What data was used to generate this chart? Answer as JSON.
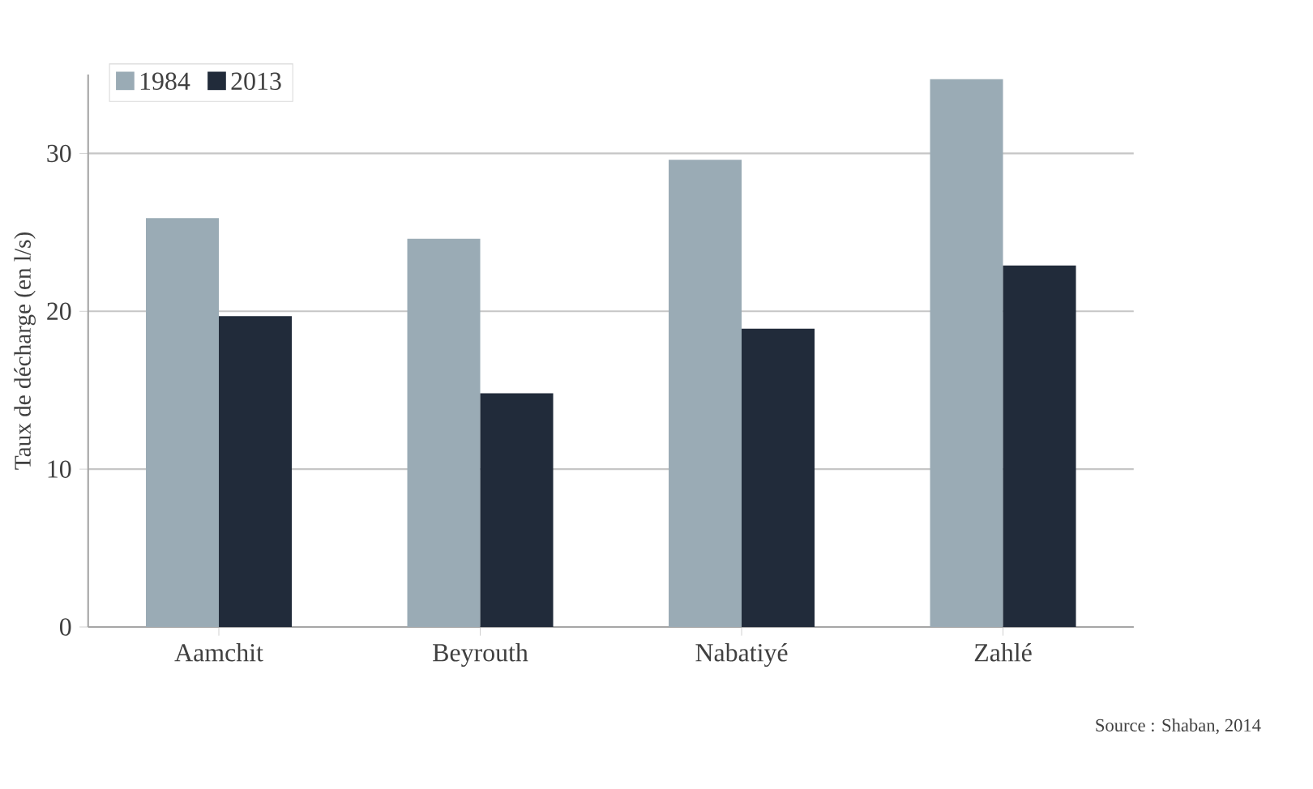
{
  "chart_data": {
    "type": "bar",
    "ylabel": "Taux de décharge (en l/s)",
    "categories": [
      "Aamchit",
      "Beyrouth",
      "Nabatiyé",
      "Zahlé"
    ],
    "series": [
      {
        "name": "1984",
        "color": "#9aabb5",
        "values": [
          25.9,
          24.6,
          29.6,
          34.7
        ]
      },
      {
        "name": "2013",
        "color": "#212b3a",
        "values": [
          19.7,
          14.8,
          18.9,
          22.9
        ]
      }
    ],
    "ylim": [
      0,
      35
    ],
    "yticks": [
      0,
      10,
      20,
      30
    ],
    "grid": "y",
    "legend": "top left",
    "annotations": [
      "Source : Shaban, 2014"
    ]
  }
}
